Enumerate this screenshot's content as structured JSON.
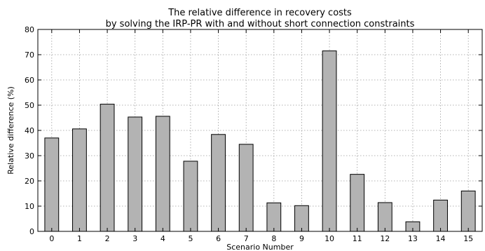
{
  "chart_data": {
    "type": "bar",
    "title": [
      "The relative difference in recovery costs",
      "by solving the IRP-PR with and without short connection constraints"
    ],
    "xlabel": "Scenario Number",
    "ylabel": "Relative difference (%)",
    "categories": [
      "0",
      "1",
      "2",
      "3",
      "4",
      "5",
      "6",
      "7",
      "8",
      "9",
      "10",
      "11",
      "12",
      "13",
      "14",
      "15"
    ],
    "values": [
      37.0,
      40.6,
      50.4,
      45.3,
      45.6,
      27.8,
      38.4,
      34.5,
      11.3,
      10.2,
      71.5,
      22.6,
      11.4,
      3.8,
      12.4,
      16.0
    ],
    "ylim": [
      0,
      80
    ],
    "yticks": [
      0,
      10,
      20,
      30,
      40,
      50,
      60,
      70,
      80
    ],
    "grid": true,
    "bar_color": "#b3b3b3",
    "edge_color": "#000000"
  }
}
